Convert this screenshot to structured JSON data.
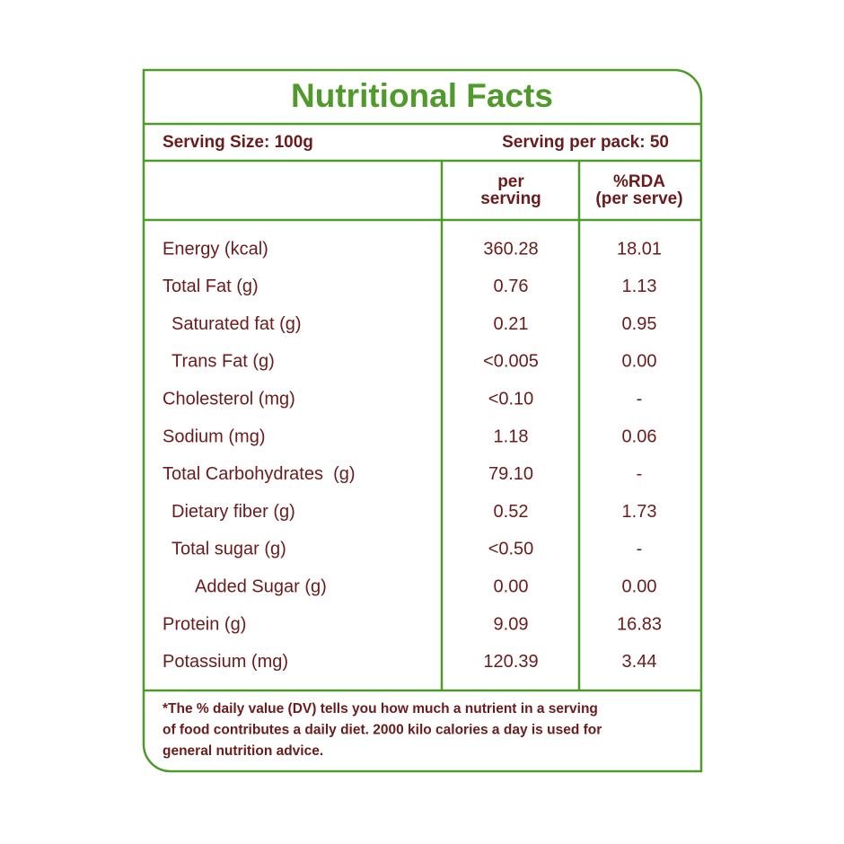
{
  "title": "Nutritional Facts",
  "serving_size": "Serving Size: 100g",
  "servings_per_pack": "Serving per pack: 50",
  "table": {
    "headers": [
      [
        "per",
        "serving"
      ],
      [
        "%RDA",
        "(per serve)"
      ]
    ],
    "rows": [
      {
        "name": "Energy (kcal)",
        "indent": 0,
        "per_serving": "360.28",
        "rda": "18.01"
      },
      {
        "name": "Total Fat (g)",
        "indent": 0,
        "per_serving": "0.76",
        "rda": "1.13"
      },
      {
        "name": "Saturated fat (g)",
        "indent": 1,
        "per_serving": "0.21",
        "rda": "0.95"
      },
      {
        "name": "Trans Fat (g)",
        "indent": 1,
        "per_serving": "<0.005",
        "rda": "0.00"
      },
      {
        "name": "Cholesterol (mg)",
        "indent": 0,
        "per_serving": "<0.10",
        "rda": "-"
      },
      {
        "name": "Sodium (mg)",
        "indent": 0,
        "per_serving": "1.18",
        "rda": "0.06"
      },
      {
        "name": "Total Carbohydrates  (g)",
        "indent": 0,
        "per_serving": "79.10",
        "rda": "-"
      },
      {
        "name": "Dietary fiber (g)",
        "indent": 1,
        "per_serving": "0.52",
        "rda": "1.73"
      },
      {
        "name": "Total sugar (g)",
        "indent": 1,
        "per_serving": "<0.50",
        "rda": "-"
      },
      {
        "name": "Added Sugar (g)",
        "indent": 2,
        "per_serving": "0.00",
        "rda": "0.00"
      },
      {
        "name": "Protein (g)",
        "indent": 0,
        "per_serving": "9.09",
        "rda": "16.83"
      },
      {
        "name": "Potassium (mg)",
        "indent": 0,
        "per_serving": "120.39",
        "rda": "3.44"
      }
    ]
  },
  "footnote": [
    "*The % daily value (DV) tells you how much a nutrient in a serving",
    "of food contributes a daily diet. 2000 kilo calories a day is used for",
    "general nutrition advice."
  ]
}
